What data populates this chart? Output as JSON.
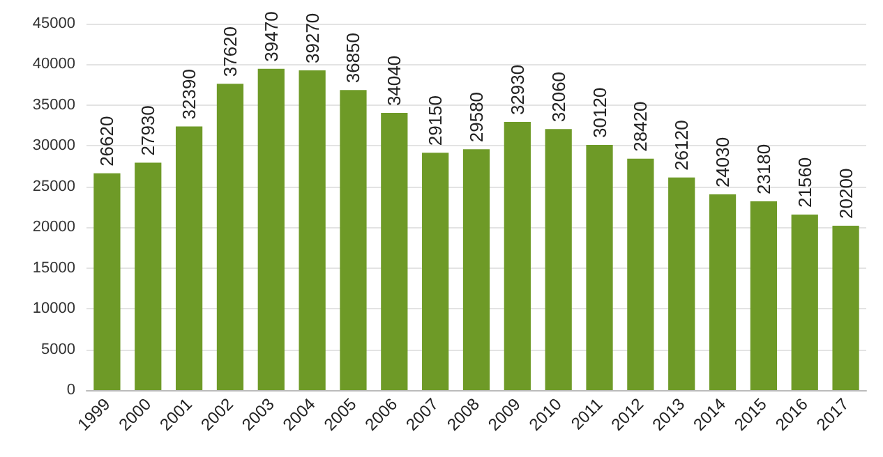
{
  "chart_data": {
    "type": "bar",
    "categories": [
      "1999",
      "2000",
      "2001",
      "2002",
      "2003",
      "2004",
      "2005",
      "2006",
      "2007",
      "2008",
      "2009",
      "2010",
      "2011",
      "2012",
      "2013",
      "2014",
      "2015",
      "2016",
      "2017"
    ],
    "values": [
      26620,
      27930,
      32390,
      37620,
      39470,
      39270,
      36850,
      34040,
      29150,
      29580,
      32930,
      32060,
      30120,
      28420,
      26120,
      24030,
      23180,
      21560,
      20200
    ],
    "color": "#6e9a27",
    "ylim": [
      0,
      45000
    ],
    "yticks": [
      0,
      5000,
      10000,
      15000,
      20000,
      25000,
      30000,
      35000,
      40000,
      45000
    ],
    "grid": "y",
    "data_labels": true
  }
}
